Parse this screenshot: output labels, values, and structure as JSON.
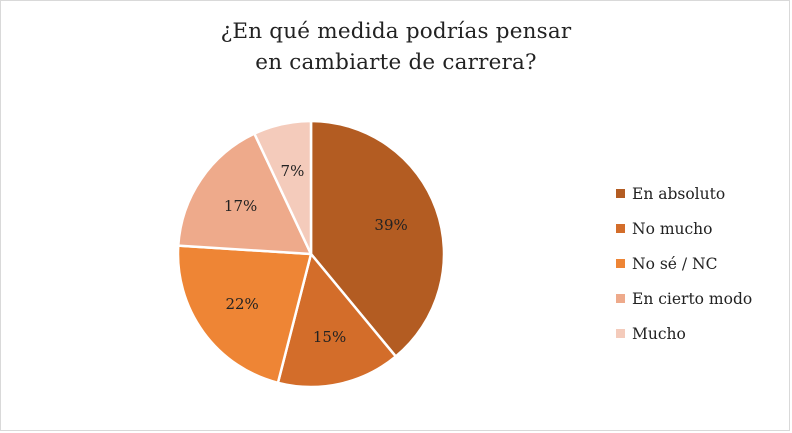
{
  "title_line1": "¿En qué medida podrías pensar",
  "title_line2": "en cambiarte de carrera?",
  "chart_data": {
    "type": "pie",
    "title": "¿En qué medida podrías pensar en cambiarte de carrera?",
    "legend_position": "right",
    "slices": [
      {
        "label": "En absoluto",
        "value": 39,
        "display": "39%",
        "color": "#b35c22"
      },
      {
        "label": "No mucho",
        "value": 15,
        "display": "15%",
        "color": "#d36d2a"
      },
      {
        "label": "No sé / NC",
        "value": 22,
        "display": "22%",
        "color": "#ee8535"
      },
      {
        "label": "En cierto modo",
        "value": 17,
        "display": "17%",
        "color": "#eeaa8b"
      },
      {
        "label": "Mucho",
        "value": 7,
        "display": "7%",
        "color": "#f4cbbb"
      }
    ]
  }
}
